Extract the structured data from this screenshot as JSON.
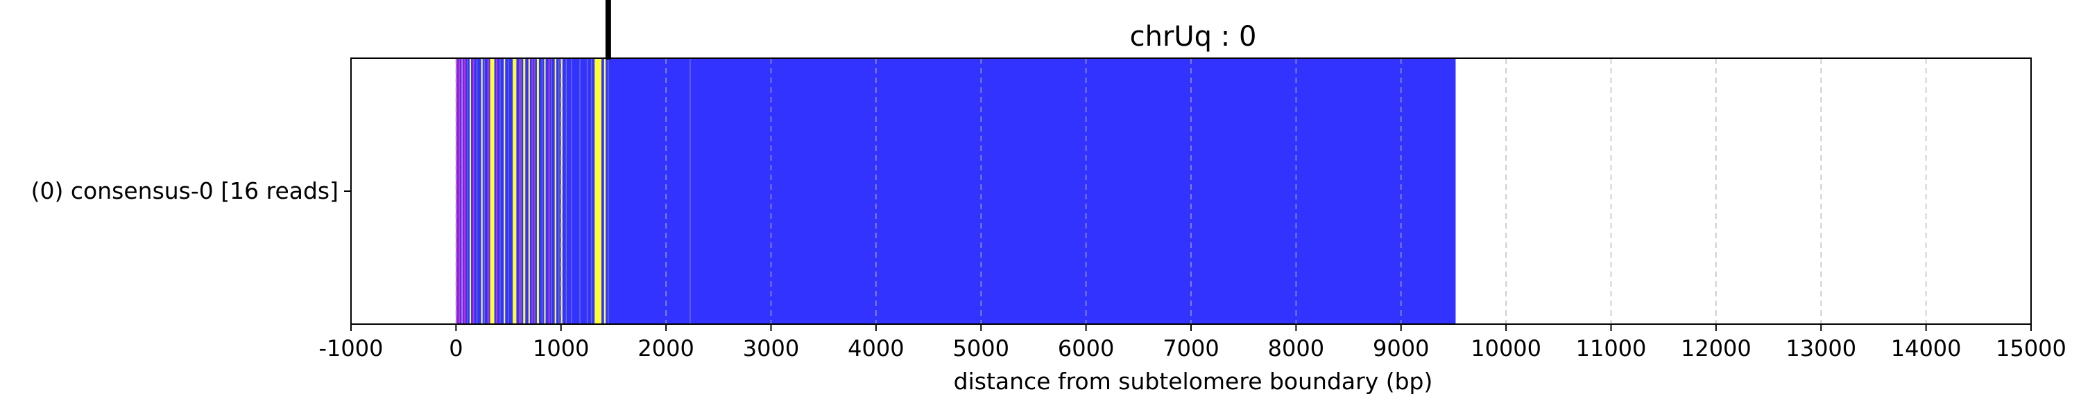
{
  "chart_data": {
    "type": "bar",
    "title": "chrUq : 0",
    "xlabel": "distance from subtelomere boundary (bp)",
    "ylabel": "",
    "xlim": [
      -1000,
      15000
    ],
    "x_ticks": [
      -1000,
      0,
      1000,
      2000,
      3000,
      4000,
      5000,
      6000,
      7000,
      8000,
      9000,
      10000,
      11000,
      12000,
      13000,
      14000,
      15000
    ],
    "x_tick_labels": [
      "-1000",
      "0",
      "1000",
      "2000",
      "3000",
      "4000",
      "5000",
      "6000",
      "7000",
      "8000",
      "9000",
      "10000",
      "11000",
      "12000",
      "13000",
      "14000",
      "15000"
    ],
    "grid": "vertical dashed",
    "rows": [
      {
        "label": "(0) consensus-0 [16 reads]",
        "bar_start": 0,
        "bar_end": 9520,
        "base_color": "#3333ff",
        "segments": [
          {
            "x0": 0,
            "x1": 12,
            "color": "#cc33cc"
          },
          {
            "x0": 25,
            "x1": 33,
            "color": "#cc33cc"
          },
          {
            "x0": 52,
            "x1": 58,
            "color": "#ff66cc"
          },
          {
            "x0": 78,
            "x1": 86,
            "color": "#cc33cc"
          },
          {
            "x0": 130,
            "x1": 136,
            "color": "#ffff66"
          },
          {
            "x0": 160,
            "x1": 166,
            "color": "#cc33cc"
          },
          {
            "x0": 240,
            "x1": 246,
            "color": "#ffff66"
          },
          {
            "x0": 300,
            "x1": 308,
            "color": "#cc33cc"
          },
          {
            "x0": 325,
            "x1": 365,
            "color": "#ffff33"
          },
          {
            "x0": 380,
            "x1": 386,
            "color": "#cc33cc"
          },
          {
            "x0": 455,
            "x1": 460,
            "color": "#ffff66"
          },
          {
            "x0": 540,
            "x1": 575,
            "color": "#ffff33"
          },
          {
            "x0": 600,
            "x1": 606,
            "color": "#cc33cc"
          },
          {
            "x0": 640,
            "x1": 660,
            "color": "#ffff33"
          },
          {
            "x0": 690,
            "x1": 696,
            "color": "#ffff66"
          },
          {
            "x0": 720,
            "x1": 726,
            "color": "#cc33cc"
          },
          {
            "x0": 770,
            "x1": 790,
            "color": "#ffff33"
          },
          {
            "x0": 840,
            "x1": 846,
            "color": "#ffff66"
          },
          {
            "x0": 880,
            "x1": 886,
            "color": "#cc33cc"
          },
          {
            "x0": 940,
            "x1": 955,
            "color": "#ffff33"
          },
          {
            "x0": 1000,
            "x1": 1006,
            "color": "#ffff66"
          },
          {
            "x0": 1320,
            "x1": 1385,
            "color": "#ffff33"
          },
          {
            "x0": 1410,
            "x1": 1425,
            "color": "#ffff66"
          }
        ],
        "thin_lines": [
          110,
          200,
          270,
          420,
          500,
          620,
          750,
          820,
          910,
          980,
          1050,
          1100,
          1180,
          1250,
          1290,
          1450,
          2230
        ],
        "marker_x": 1450
      }
    ]
  }
}
